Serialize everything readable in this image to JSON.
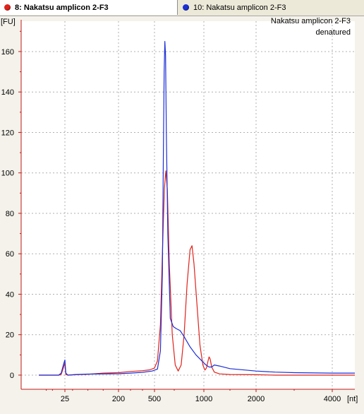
{
  "tabs": [
    {
      "label": "8: Nakatsu amplicon 2-F3",
      "color": "#e0221b",
      "active": true
    },
    {
      "label": "10: Nakatsu amplicon 2-F3",
      "color": "#1d2fd6",
      "active": false
    }
  ],
  "colors": {
    "axis": "#c01818",
    "grid": "#b0b0b0",
    "plot_background": "#ffffff",
    "panel_background": "#f4f2ea"
  },
  "chart_data": {
    "type": "line",
    "title": "",
    "annotations": [
      "Nakatsu amplicon 2-F3",
      "denatured"
    ],
    "ylabel": "[FU]",
    "xlabel": "[nt]",
    "ylim": [
      -7,
      175
    ],
    "y_ticks": [
      0,
      20,
      40,
      60,
      80,
      100,
      120,
      140,
      160
    ],
    "x_ticks": [
      {
        "label": "25",
        "value": 25
      },
      {
        "label": "200",
        "value": 200
      },
      {
        "label": "500",
        "value": 500
      },
      {
        "label": "1000",
        "value": 1000
      },
      {
        "label": "2000",
        "value": 2000
      },
      {
        "label": "4000",
        "value": 4000
      }
    ],
    "grid": true,
    "series": [
      {
        "name": "8: Nakatsu amplicon 2-F3",
        "color": "#e0221b",
        "points": [
          [
            4,
            0
          ],
          [
            20,
            0
          ],
          [
            22,
            0.3
          ],
          [
            24,
            4
          ],
          [
            25,
            6
          ],
          [
            26,
            4
          ],
          [
            28,
            0.3
          ],
          [
            35,
            0
          ],
          [
            60,
            0.2
          ],
          [
            100,
            0.4
          ],
          [
            150,
            1
          ],
          [
            200,
            1.2
          ],
          [
            300,
            1.8
          ],
          [
            400,
            2.2
          ],
          [
            460,
            2.6
          ],
          [
            500,
            3.5
          ],
          [
            530,
            7
          ],
          [
            560,
            25
          ],
          [
            580,
            60
          ],
          [
            600,
            92
          ],
          [
            615,
            101
          ],
          [
            630,
            92
          ],
          [
            650,
            55
          ],
          [
            680,
            20
          ],
          [
            710,
            5
          ],
          [
            740,
            2
          ],
          [
            770,
            5
          ],
          [
            800,
            20
          ],
          [
            830,
            45
          ],
          [
            860,
            62
          ],
          [
            880,
            64
          ],
          [
            900,
            55
          ],
          [
            930,
            35
          ],
          [
            960,
            15
          ],
          [
            990,
            5
          ],
          [
            1020,
            2.5
          ],
          [
            1050,
            3.5
          ],
          [
            1080,
            7
          ],
          [
            1100,
            9
          ],
          [
            1120,
            8
          ],
          [
            1150,
            4
          ],
          [
            1200,
            1.5
          ],
          [
            1300,
            0.6
          ],
          [
            1500,
            0.3
          ],
          [
            2000,
            0.2
          ],
          [
            2500,
            0
          ],
          [
            5000,
            0
          ]
        ]
      },
      {
        "name": "10: Nakatsu amplicon 2-F3",
        "color": "#1d2fd6",
        "points": [
          [
            4,
            0
          ],
          [
            20,
            0
          ],
          [
            22,
            1
          ],
          [
            24,
            5.5
          ],
          [
            25,
            7.5
          ],
          [
            26,
            5.5
          ],
          [
            28,
            1
          ],
          [
            35,
            0
          ],
          [
            60,
            0.3
          ],
          [
            100,
            0.5
          ],
          [
            200,
            0.7
          ],
          [
            300,
            1
          ],
          [
            400,
            1.4
          ],
          [
            480,
            2
          ],
          [
            530,
            3
          ],
          [
            560,
            12
          ],
          [
            580,
            50
          ],
          [
            590,
            110
          ],
          [
            598,
            150
          ],
          [
            605,
            165
          ],
          [
            612,
            158
          ],
          [
            620,
            120
          ],
          [
            635,
            70
          ],
          [
            660,
            28
          ],
          [
            690,
            24
          ],
          [
            720,
            23
          ],
          [
            760,
            22
          ],
          [
            800,
            19
          ],
          [
            860,
            14
          ],
          [
            920,
            10
          ],
          [
            980,
            7
          ],
          [
            1040,
            5
          ],
          [
            1100,
            4
          ],
          [
            1150,
            4
          ],
          [
            1200,
            5
          ],
          [
            1300,
            4.5
          ],
          [
            1500,
            3.2
          ],
          [
            2000,
            2
          ],
          [
            2500,
            1.5
          ],
          [
            3000,
            1.2
          ],
          [
            4000,
            1
          ],
          [
            5000,
            1
          ]
        ]
      }
    ]
  }
}
